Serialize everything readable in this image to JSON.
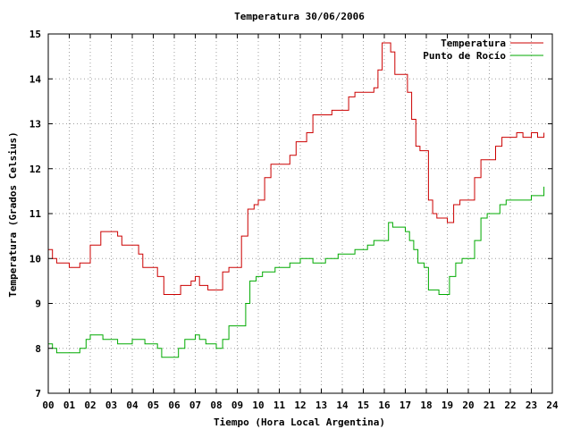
{
  "chart_data": {
    "type": "line",
    "title": "Temperatura 30/06/2006",
    "xlabel": "Tiempo (Hora Local Argentina)",
    "ylabel": "Temperatura (Grados Celsius)",
    "xlim": [
      0,
      24
    ],
    "ylim": [
      7,
      15
    ],
    "x_ticks": [
      "00",
      "01",
      "02",
      "03",
      "04",
      "05",
      "06",
      "07",
      "08",
      "09",
      "10",
      "11",
      "12",
      "13",
      "14",
      "15",
      "16",
      "17",
      "18",
      "19",
      "20",
      "21",
      "22",
      "23",
      "24"
    ],
    "y_ticks": [
      "7",
      "8",
      "9",
      "10",
      "11",
      "12",
      "13",
      "14",
      "15"
    ],
    "grid": true,
    "legend_position": "top-right",
    "series": [
      {
        "name": "Temperatura",
        "color": "#cc0000",
        "x": [
          0,
          0.2,
          0.4,
          1.0,
          1.5,
          2.0,
          2.5,
          3.0,
          3.3,
          3.5,
          4.0,
          4.3,
          4.5,
          5.0,
          5.2,
          5.5,
          5.8,
          6.0,
          6.3,
          6.5,
          6.8,
          7.0,
          7.2,
          7.4,
          7.6,
          7.8,
          8.0,
          8.3,
          8.6,
          9.0,
          9.2,
          9.5,
          9.8,
          10.0,
          10.3,
          10.6,
          10.9,
          11.2,
          11.5,
          11.8,
          12.0,
          12.3,
          12.6,
          12.9,
          13.2,
          13.5,
          13.8,
          14.0,
          14.3,
          14.6,
          14.9,
          15.2,
          15.5,
          15.7,
          15.9,
          16.1,
          16.3,
          16.5,
          16.7,
          16.9,
          17.1,
          17.3,
          17.5,
          17.7,
          17.9,
          18.1,
          18.3,
          18.5,
          18.8,
          19.0,
          19.3,
          19.6,
          20.0,
          20.3,
          20.6,
          21.0,
          21.3,
          21.6,
          22.0,
          22.3,
          22.6,
          23.0,
          23.3,
          23.6
        ],
        "values": [
          10.2,
          10.0,
          9.9,
          9.8,
          9.9,
          10.3,
          10.6,
          10.6,
          10.5,
          10.3,
          10.3,
          10.1,
          9.8,
          9.8,
          9.6,
          9.2,
          9.2,
          9.2,
          9.4,
          9.4,
          9.5,
          9.6,
          9.4,
          9.4,
          9.3,
          9.3,
          9.3,
          9.7,
          9.8,
          9.8,
          10.5,
          11.1,
          11.2,
          11.3,
          11.8,
          12.1,
          12.1,
          12.1,
          12.3,
          12.6,
          12.6,
          12.8,
          13.2,
          13.2,
          13.2,
          13.3,
          13.3,
          13.3,
          13.6,
          13.7,
          13.7,
          13.7,
          13.8,
          14.2,
          14.8,
          14.8,
          14.6,
          14.1,
          14.1,
          14.1,
          13.7,
          13.1,
          12.5,
          12.4,
          12.4,
          11.3,
          11.0,
          10.9,
          10.9,
          10.8,
          11.2,
          11.3,
          11.3,
          11.8,
          12.2,
          12.2,
          12.5,
          12.7,
          12.7,
          12.8,
          12.7,
          12.8,
          12.7,
          12.8
        ]
      },
      {
        "name": "Punto de Rocío",
        "color": "#00aa00",
        "x": [
          0,
          0.2,
          0.4,
          1.0,
          1.5,
          1.8,
          2.0,
          2.3,
          2.6,
          3.0,
          3.3,
          3.6,
          4.0,
          4.3,
          4.6,
          5.0,
          5.2,
          5.4,
          5.8,
          6.0,
          6.2,
          6.5,
          6.8,
          7.0,
          7.2,
          7.5,
          7.8,
          8.0,
          8.3,
          8.6,
          9.0,
          9.2,
          9.4,
          9.6,
          9.9,
          10.2,
          10.5,
          10.8,
          11.0,
          11.2,
          11.5,
          11.8,
          12.0,
          12.3,
          12.6,
          12.9,
          13.2,
          13.5,
          13.8,
          14.0,
          14.3,
          14.6,
          14.9,
          15.2,
          15.5,
          15.8,
          16.0,
          16.2,
          16.4,
          16.6,
          16.8,
          17.0,
          17.2,
          17.4,
          17.6,
          17.9,
          18.1,
          18.3,
          18.6,
          18.9,
          19.1,
          19.4,
          19.7,
          20.0,
          20.3,
          20.6,
          20.9,
          21.2,
          21.5,
          21.8,
          22.1,
          22.4,
          22.7,
          23.0,
          23.3,
          23.6
        ],
        "values": [
          8.1,
          8.0,
          7.9,
          7.9,
          8.0,
          8.2,
          8.3,
          8.3,
          8.2,
          8.2,
          8.1,
          8.1,
          8.2,
          8.2,
          8.1,
          8.1,
          8.0,
          7.8,
          7.8,
          7.8,
          8.0,
          8.2,
          8.2,
          8.3,
          8.2,
          8.1,
          8.1,
          8.0,
          8.2,
          8.5,
          8.5,
          8.5,
          9.0,
          9.5,
          9.6,
          9.7,
          9.7,
          9.8,
          9.8,
          9.8,
          9.9,
          9.9,
          10.0,
          10.0,
          9.9,
          9.9,
          10.0,
          10.0,
          10.1,
          10.1,
          10.1,
          10.2,
          10.2,
          10.3,
          10.4,
          10.4,
          10.4,
          10.8,
          10.7,
          10.7,
          10.7,
          10.6,
          10.4,
          10.2,
          9.9,
          9.8,
          9.3,
          9.3,
          9.2,
          9.2,
          9.6,
          9.9,
          10.0,
          10.0,
          10.4,
          10.9,
          11.0,
          11.0,
          11.2,
          11.3,
          11.3,
          11.3,
          11.3,
          11.4,
          11.4,
          11.6
        ]
      }
    ]
  }
}
